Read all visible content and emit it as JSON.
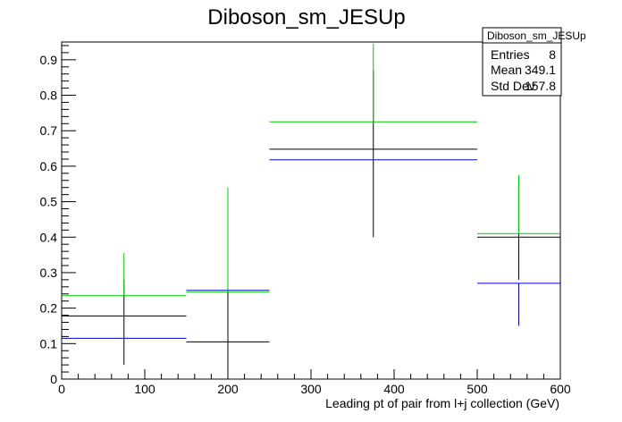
{
  "chart_data": {
    "type": "scatter",
    "title": "Diboson_sm_JESUp",
    "xlabel": "Leading pt of pair from l+j collection (GeV)",
    "ylabel": "",
    "xlim": [
      0,
      600
    ],
    "ylim": [
      0,
      0.95
    ],
    "x_ticks": [
      "0",
      "100",
      "200",
      "300",
      "400",
      "500",
      "600"
    ],
    "y_ticks": [
      "0",
      "0.1",
      "0.2",
      "0.3",
      "0.4",
      "0.5",
      "0.6",
      "0.7",
      "0.8",
      "0.9"
    ],
    "grid": false,
    "legend": "none",
    "stats_box": {
      "title": "Diboson_sm_JESUp",
      "rows": [
        {
          "label": "Entries",
          "value": "8"
        },
        {
          "label": "Mean",
          "value": "349.1"
        },
        {
          "label": "Std Dev",
          "value": "157.8"
        }
      ]
    },
    "series": [
      {
        "color": "#000000",
        "points": [
          {
            "xlo": 0,
            "xhi": 150,
            "x": 75,
            "y": 0.178,
            "ylo": 0.04,
            "yhi": 0.28
          },
          {
            "xlo": 150,
            "xhi": 250,
            "x": 200,
            "y": 0.105,
            "ylo": 0.0,
            "yhi": 0.41
          },
          {
            "xlo": 250,
            "xhi": 500,
            "x": 375,
            "y": 0.648,
            "ylo": 0.4,
            "yhi": 0.87
          },
          {
            "xlo": 500,
            "xhi": 600,
            "x": 550,
            "y": 0.4,
            "ylo": 0.28,
            "yhi": 0.565
          }
        ]
      },
      {
        "color": "#00cc00",
        "points": [
          {
            "xlo": 0,
            "xhi": 150,
            "x": 75,
            "y": 0.235,
            "ylo": 0.235,
            "yhi": 0.355
          },
          {
            "xlo": 150,
            "xhi": 250,
            "x": 200,
            "y": 0.245,
            "ylo": 0.245,
            "yhi": 0.54
          },
          {
            "xlo": 250,
            "xhi": 500,
            "x": 375,
            "y": 0.725,
            "ylo": 0.725,
            "yhi": 0.945
          },
          {
            "xlo": 500,
            "xhi": 600,
            "x": 550,
            "y": 0.41,
            "ylo": 0.41,
            "yhi": 0.575
          }
        ]
      },
      {
        "color": "#0000cc",
        "points": [
          {
            "xlo": 0,
            "xhi": 150,
            "x": 75,
            "y": 0.115,
            "ylo": 0.115,
            "yhi": 0.115
          },
          {
            "xlo": 150,
            "xhi": 250,
            "x": 200,
            "y": 0.25,
            "ylo": 0.25,
            "yhi": 0.25
          },
          {
            "xlo": 250,
            "xhi": 500,
            "x": 375,
            "y": 0.618,
            "ylo": 0.618,
            "yhi": 0.618
          },
          {
            "xlo": 500,
            "xhi": 600,
            "x": 550,
            "y": 0.27,
            "ylo": 0.15,
            "yhi": 0.27
          }
        ]
      }
    ]
  }
}
